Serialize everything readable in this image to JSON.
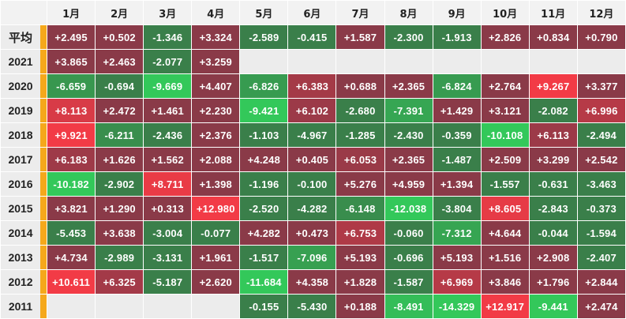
{
  "months": [
    "1月",
    "2月",
    "3月",
    "4月",
    "5月",
    "6月",
    "7月",
    "8月",
    "9月",
    "10月",
    "11月",
    "12月"
  ],
  "rows": [
    {
      "label": "平均",
      "values": [
        "+2.495",
        "+0.502",
        "-1.346",
        "+3.324",
        "-2.589",
        "-0.415",
        "+1.587",
        "-2.300",
        "-1.913",
        "+2.826",
        "+0.834",
        "+0.790"
      ]
    },
    {
      "label": "2021",
      "values": [
        "+3.865",
        "+2.463",
        "-2.077",
        "+3.259",
        "",
        "",
        "",
        "",
        "",
        "",
        "",
        ""
      ]
    },
    {
      "label": "2020",
      "values": [
        "-6.659",
        "-0.694",
        "-9.669",
        "+4.407",
        "-6.826",
        "+6.383",
        "+0.688",
        "+2.365",
        "-6.824",
        "+2.764",
        "+9.267",
        "+3.377"
      ]
    },
    {
      "label": "2019",
      "values": [
        "+8.113",
        "+2.472",
        "+1.461",
        "+2.230",
        "-9.421",
        "+6.102",
        "-2.680",
        "-7.391",
        "+1.429",
        "+3.121",
        "-2.082",
        "+6.996"
      ]
    },
    {
      "label": "2018",
      "values": [
        "+9.921",
        "-6.211",
        "-2.436",
        "+2.376",
        "-1.103",
        "-4.967",
        "-1.285",
        "-2.430",
        "-0.359",
        "-10.108",
        "+6.113",
        "-2.494"
      ]
    },
    {
      "label": "2017",
      "values": [
        "+6.183",
        "+1.626",
        "+1.562",
        "+2.088",
        "+4.248",
        "+0.405",
        "+6.053",
        "+2.365",
        "-1.487",
        "+2.509",
        "+3.299",
        "+2.542"
      ]
    },
    {
      "label": "2016",
      "values": [
        "-10.182",
        "-2.902",
        "+8.711",
        "+1.398",
        "-1.196",
        "-0.100",
        "+5.276",
        "+4.959",
        "+1.394",
        "-1.557",
        "-0.631",
        "-3.463"
      ]
    },
    {
      "label": "2015",
      "values": [
        "+3.821",
        "+1.290",
        "+0.313",
        "+12.980",
        "-2.520",
        "-4.282",
        "-6.148",
        "-12.038",
        "-3.804",
        "+8.605",
        "-2.843",
        "-0.373"
      ]
    },
    {
      "label": "2014",
      "values": [
        "-5.453",
        "+3.638",
        "-3.004",
        "-0.077",
        "+4.282",
        "+0.473",
        "+6.753",
        "-0.060",
        "-7.312",
        "+4.644",
        "-0.044",
        "-1.594"
      ]
    },
    {
      "label": "2013",
      "values": [
        "+4.734",
        "-2.989",
        "-3.131",
        "+1.961",
        "-1.517",
        "-7.096",
        "+5.193",
        "-0.696",
        "+5.193",
        "+1.516",
        "+2.908",
        "-2.407"
      ]
    },
    {
      "label": "2012",
      "values": [
        "+10.611",
        "+6.325",
        "-5.187",
        "+2.620",
        "-11.684",
        "+4.358",
        "+1.828",
        "-1.587",
        "+6.969",
        "+3.846",
        "+1.796",
        "+2.844"
      ]
    },
    {
      "label": "2011",
      "values": [
        "",
        "",
        "",
        "",
        "-0.155",
        "-5.430",
        "+0.188",
        "-8.491",
        "-14.329",
        "+12.917",
        "-9.441",
        "+2.474"
      ]
    }
  ],
  "colors": {
    "positive_dark": "#8a3a48",
    "positive_bright": "#f23b46",
    "negative_dark": "#3a7f4a",
    "negative_bright": "#33c85a",
    "marker": "#f5a81b",
    "empty_cell": "#ececec",
    "header_bg": "#f2f2f2"
  }
}
